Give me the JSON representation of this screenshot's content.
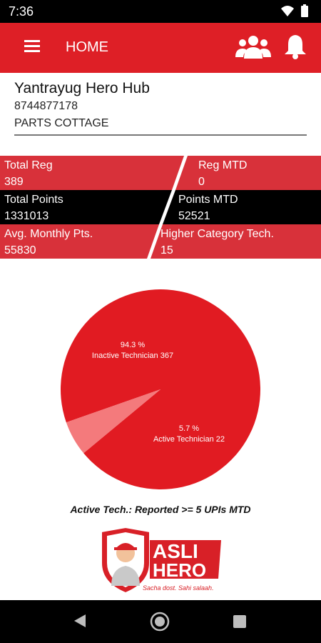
{
  "status_bar": {
    "time": "7:36"
  },
  "app_bar": {
    "title": "HOME"
  },
  "hub": {
    "name": "Yantrayug Hero Hub",
    "phone": "8744877178",
    "shop": "PARTS COTTAGE"
  },
  "stats": [
    {
      "label": "Total Reg",
      "value": "389"
    },
    {
      "label": "Reg MTD",
      "value": "0"
    },
    {
      "label": "Total Points",
      "value": "1331013"
    },
    {
      "label": "Points MTD",
      "value": "52521"
    },
    {
      "label": "Avg. Monthly Pts.",
      "value": "55830"
    },
    {
      "label": "Higher Category Tech.",
      "value": "15"
    }
  ],
  "chart_data": {
    "type": "pie",
    "slices": [
      {
        "name": "Inactive Technician",
        "value": 367,
        "percent": "94.3 %",
        "label": "Inactive Technician 367",
        "color": "#e11b22"
      },
      {
        "name": "Active Technician",
        "value": 22,
        "percent": "5.7 %",
        "label": "Active Technician 22",
        "color": "#f47a7c"
      }
    ]
  },
  "caption": "Active Tech.: Reported >= 5 UPIs MTD",
  "logo": {
    "line1": "ASLI",
    "line2": "HERO",
    "tagline": "Sacha dost. Sahi salaah."
  },
  "colors": {
    "brand_red": "#de1f26",
    "stat_red": "#d8313a",
    "stat_black": "#000000"
  }
}
